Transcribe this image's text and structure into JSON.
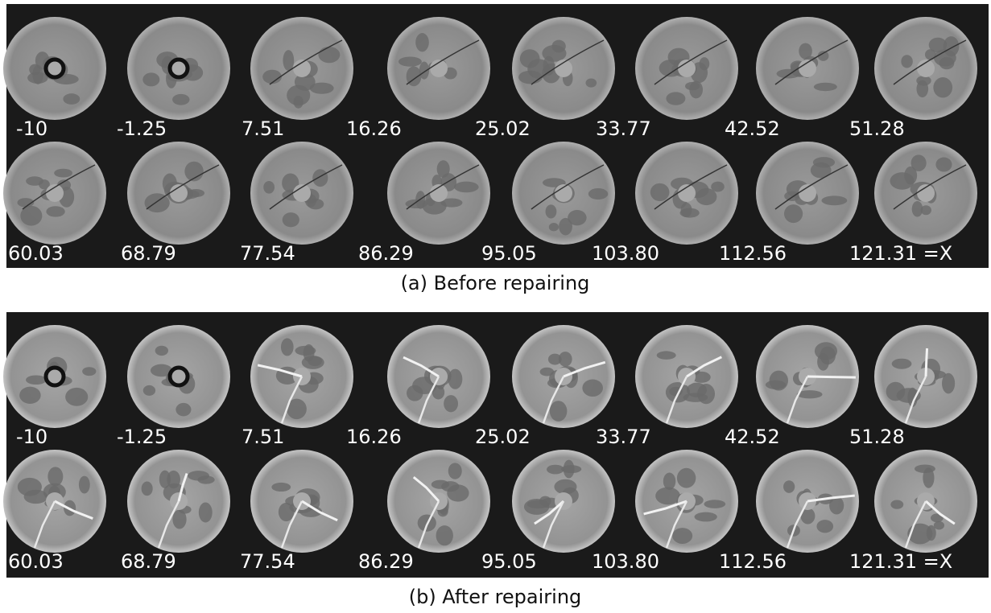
{
  "panels": [
    {
      "caption": "(a) Before repairing",
      "labels": [
        "-10",
        "-1.25",
        "7.51",
        "16.26",
        "25.02",
        "33.77",
        "42.52",
        "51.28",
        "60.03",
        "68.79",
        "77.54",
        "86.29",
        "95.05",
        "103.80",
        "112.56",
        "121.31 =X"
      ]
    },
    {
      "caption": "(b) After repairing",
      "labels": [
        "-10",
        "-1.25",
        "7.51",
        "16.26",
        "25.02",
        "33.77",
        "42.52",
        "51.28",
        "60.03",
        "68.79",
        "77.54",
        "86.29",
        "95.05",
        "103.80",
        "112.56",
        "121.31 =X"
      ]
    }
  ]
}
